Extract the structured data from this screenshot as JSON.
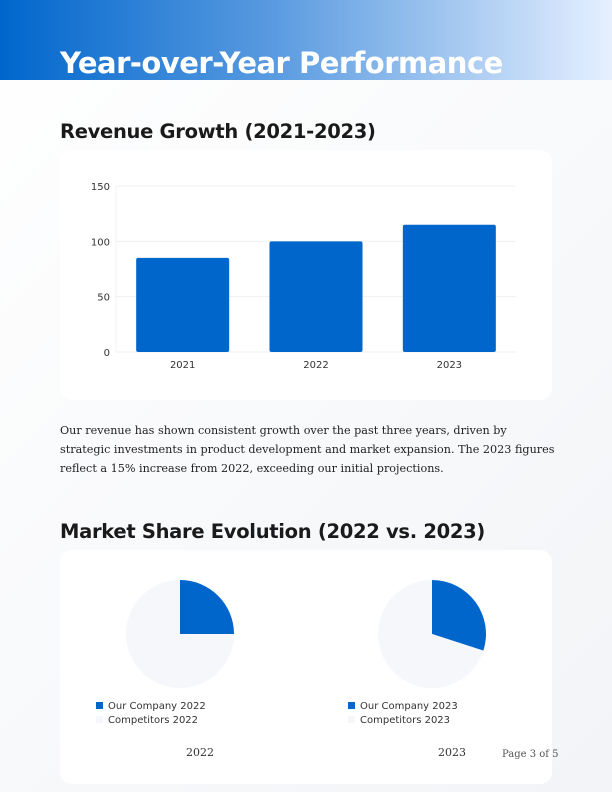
{
  "header": {
    "title": "Year-over-Year Performance"
  },
  "revenue": {
    "heading": "Revenue Growth (2021-2023)",
    "paragraph": "Our revenue has shown consistent growth over the past three years, driven by strategic investments in product development and market expansion. The 2023 figures reflect a 15% increase from 2022, exceeding our initial projections."
  },
  "market": {
    "heading": "Market Share Evolution (2022 vs. 2023)"
  },
  "footer": {
    "page": "Page 3 of 5"
  },
  "colors": {
    "accent": "#0066cc",
    "competitors": "#f5f7fa"
  },
  "chart_data": [
    {
      "type": "bar",
      "categories": [
        "2021",
        "2022",
        "2023"
      ],
      "values": [
        85,
        100,
        115
      ],
      "ylim": [
        0,
        150
      ],
      "yticks": [
        0,
        50,
        100,
        150
      ],
      "grid": true,
      "xlabel": "",
      "ylabel": ""
    },
    {
      "type": "pie",
      "labels": [
        "Our Company 2022",
        "Competitors 2022"
      ],
      "values": [
        25,
        75
      ],
      "title": "2022",
      "legend": "bottom-left"
    },
    {
      "type": "pie",
      "labels": [
        "Our Company 2023",
        "Competitors 2023"
      ],
      "values": [
        30,
        70
      ],
      "title": "2023",
      "legend": "bottom-left"
    }
  ]
}
